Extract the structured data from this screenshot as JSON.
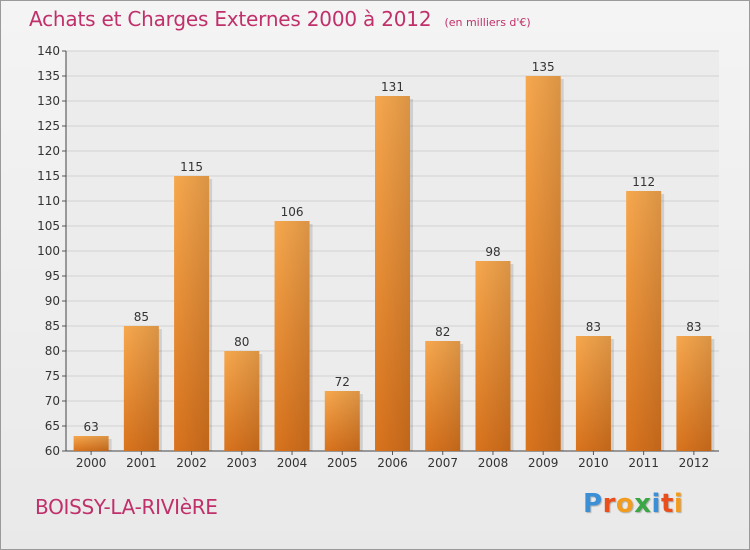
{
  "header": {
    "title": "Achats et Charges Externes 2000 à 2012",
    "subtitle": "(en milliers d'€)"
  },
  "footer": {
    "commune": "BOISSY-LA-RIVIèRE",
    "logo_text": "Proxiti",
    "logo_letters": [
      "P",
      "r",
      "o",
      "x",
      "i",
      "t",
      "i"
    ],
    "logo_colors": [
      "#3a8fd6",
      "#e94e1b",
      "#f29c1f",
      "#3aa645",
      "#3a8fd6",
      "#e94e1b",
      "#f29c1f"
    ]
  },
  "colors": {
    "bar_light": "#f7a84e",
    "bar_dark": "#d9731d",
    "title": "#c0306a",
    "axis_text": "#333333",
    "grid": "#d2d2d2"
  },
  "chart_data": {
    "type": "bar",
    "title": "Achats et Charges Externes 2000 à 2012",
    "subtitle": "(en milliers d'€)",
    "categories": [
      "2000",
      "2001",
      "2002",
      "2003",
      "2004",
      "2005",
      "2006",
      "2007",
      "2008",
      "2009",
      "2010",
      "2011",
      "2012"
    ],
    "values": [
      63,
      85,
      115,
      80,
      106,
      72,
      131,
      82,
      98,
      135,
      83,
      112,
      83
    ],
    "ylim": [
      60,
      140
    ],
    "yticks": [
      60,
      65,
      70,
      75,
      80,
      85,
      90,
      95,
      100,
      105,
      110,
      115,
      120,
      125,
      130,
      135,
      140
    ],
    "grid": true,
    "data_labels": true
  }
}
